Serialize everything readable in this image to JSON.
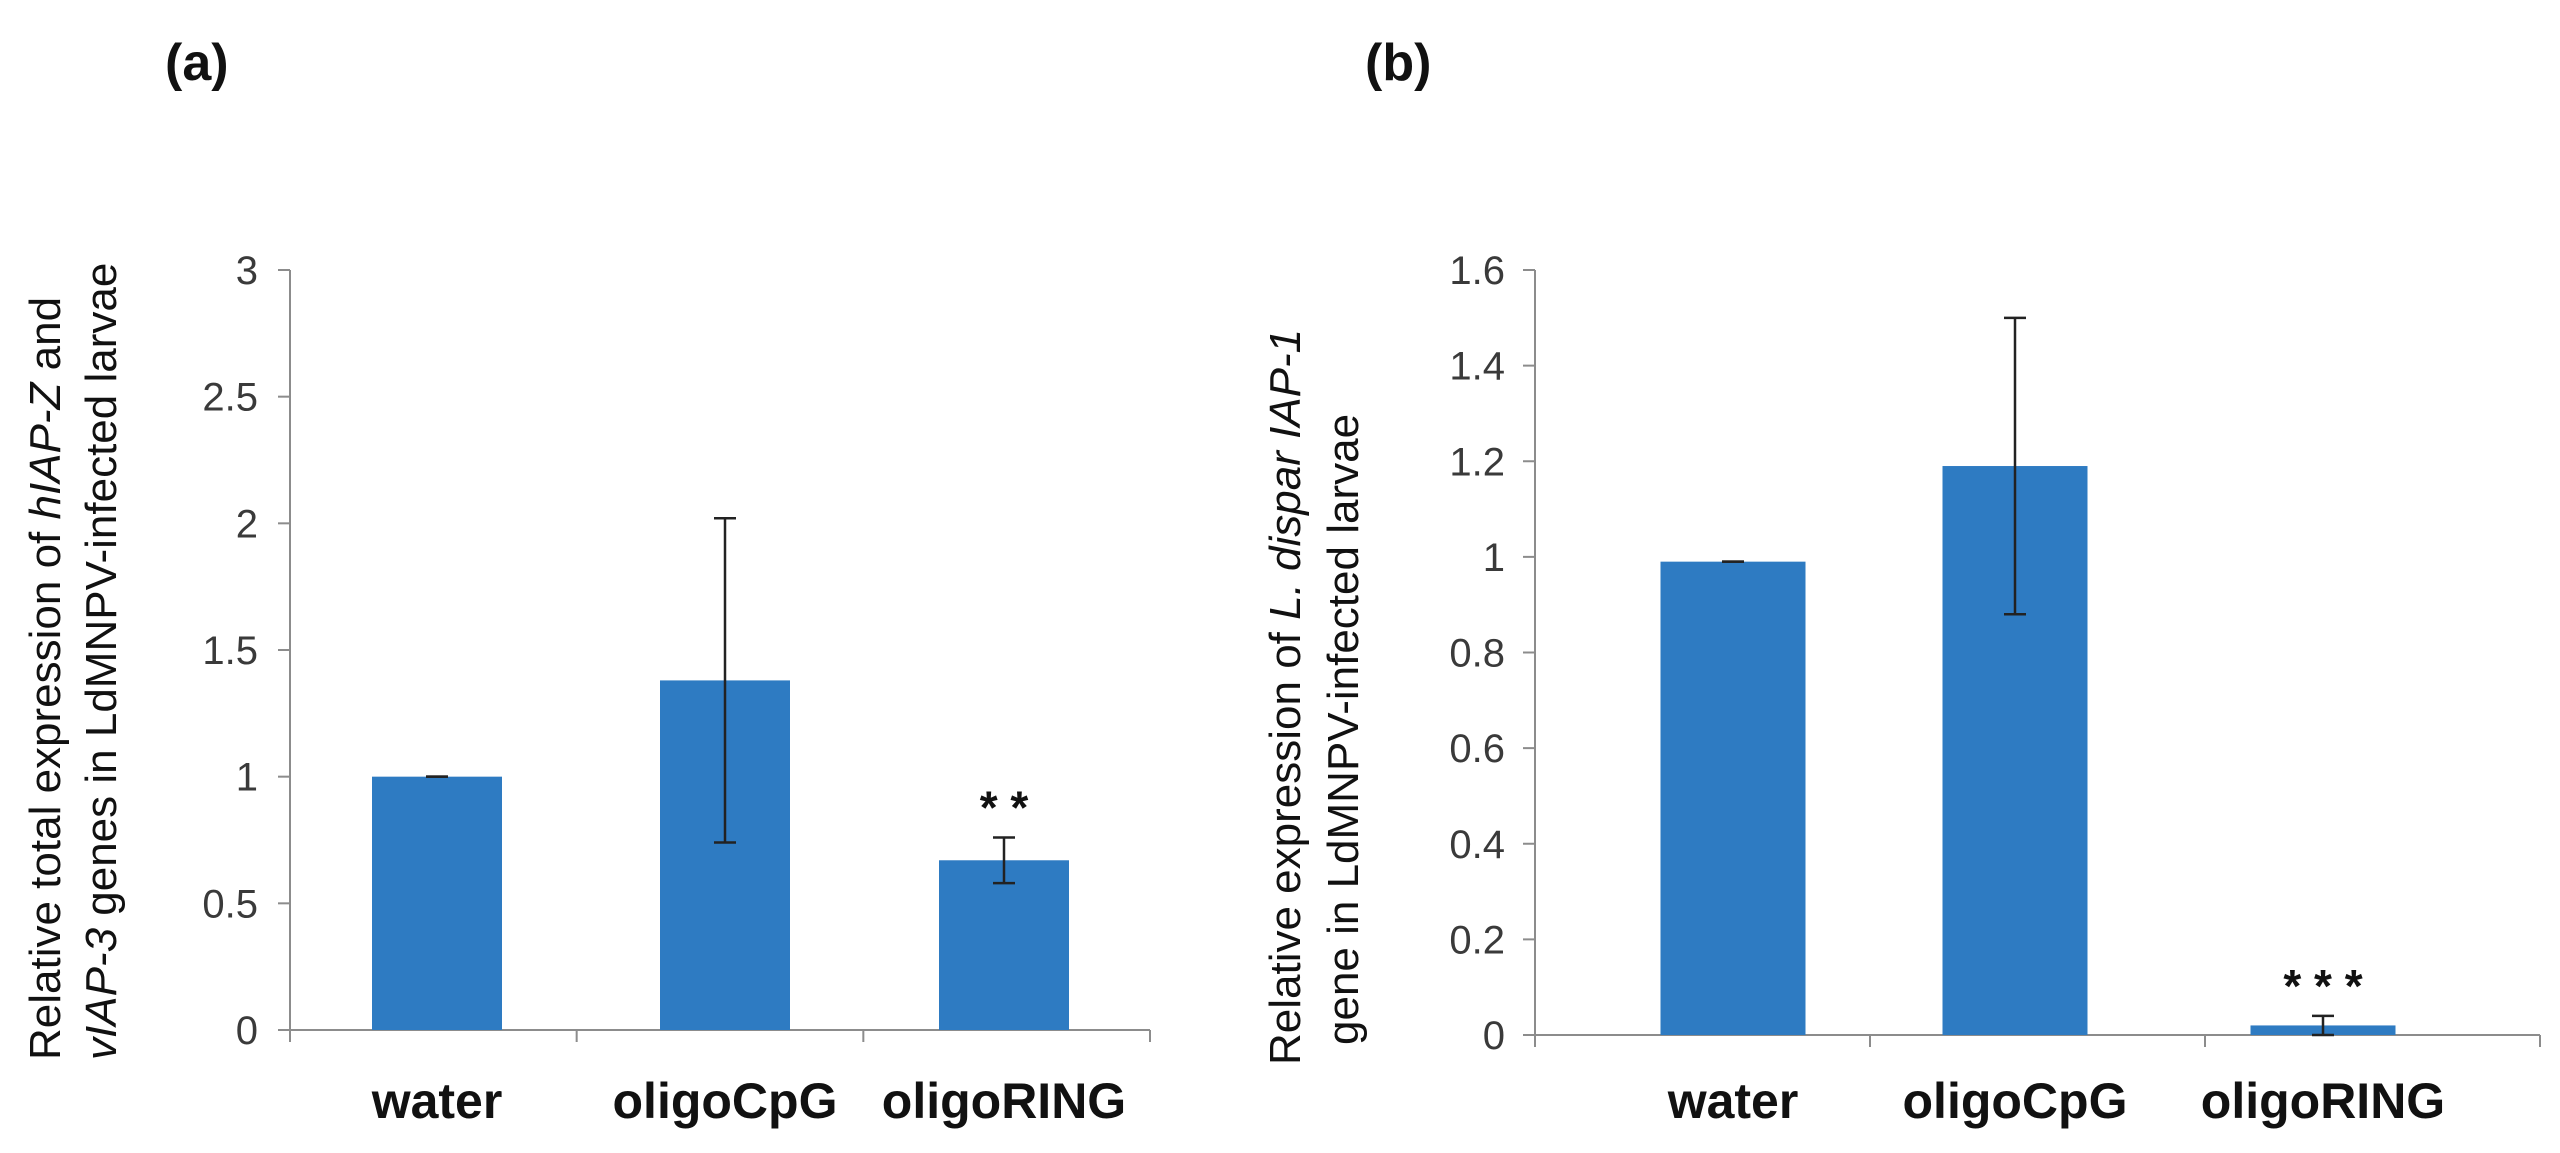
{
  "chart_data": [
    {
      "type": "bar",
      "panel_label": "(a)",
      "categories": [
        "water",
        "oligoCpG",
        "oligoRING"
      ],
      "values": [
        1.0,
        1.38,
        0.67
      ],
      "errors": [
        0.0,
        0.64,
        0.09
      ],
      "significance": [
        "",
        "",
        "* *"
      ],
      "ylim": [
        0,
        3
      ],
      "yticks": [
        "0",
        "0.5",
        "1",
        "1.5",
        "2",
        "2.5",
        "3"
      ],
      "ylabel_line1": [
        "Relative total expression of ",
        "hIAP-Z",
        " and"
      ],
      "ylabel_line2": [
        "vIAP-3",
        " genes in LdMNPV-infected larvae"
      ],
      "bar_color": "#2E7BC2"
    },
    {
      "type": "bar",
      "panel_label": "(b)",
      "categories": [
        "water",
        "oligoCpG",
        "oligoRING"
      ],
      "values": [
        0.99,
        1.19,
        0.02
      ],
      "errors": [
        0.0,
        0.31,
        0.02
      ],
      "significance": [
        "",
        "",
        "* * *"
      ],
      "ylim": [
        0,
        1.6
      ],
      "yticks": [
        "0",
        "0.2",
        "0.4",
        "0.6",
        "0.8",
        "1",
        "1.2",
        "1.4",
        "1.6"
      ],
      "ylabel_line1": [
        "Relative expression of ",
        "L. dispar IAP-1",
        ""
      ],
      "ylabel_line2": [
        "gene in LdMNPV-infected larvae",
        "",
        ""
      ],
      "bar_color": "#2E7BC2"
    }
  ]
}
